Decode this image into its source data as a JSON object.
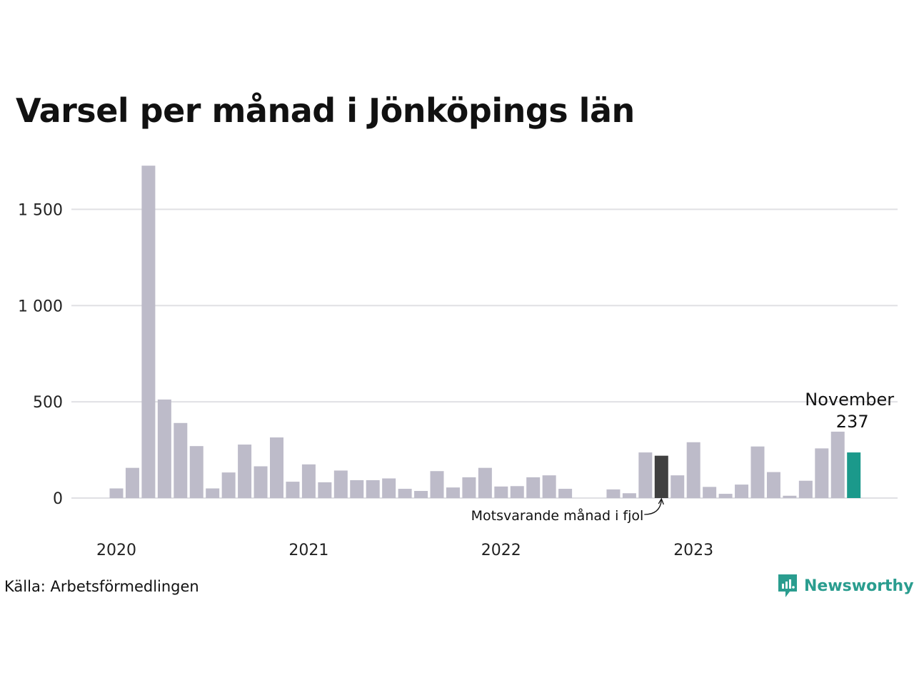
{
  "title": "Varsel per månad i Jönköpings län",
  "source": "Källa: Arbetsförmedlingen",
  "brand": "Newsworthy",
  "chart_data": {
    "type": "bar",
    "title": "Varsel per månad i Jönköpings län",
    "xlabel": "",
    "ylabel": "",
    "ylim": [
      0,
      1750
    ],
    "yticks": [
      0,
      500,
      1000,
      1500
    ],
    "ytick_labels": [
      "0",
      "500",
      "1 000",
      "1 500"
    ],
    "year_labels": [
      {
        "label": "2020",
        "month_index": 0
      },
      {
        "label": "2021",
        "month_index": 12
      },
      {
        "label": "2022",
        "month_index": 24
      },
      {
        "label": "2023",
        "month_index": 36
      }
    ],
    "categories": [
      "2020-01",
      "2020-02",
      "2020-03",
      "2020-04",
      "2020-05",
      "2020-06",
      "2020-07",
      "2020-08",
      "2020-09",
      "2020-10",
      "2020-11",
      "2020-12",
      "2021-01",
      "2021-02",
      "2021-03",
      "2021-04",
      "2021-05",
      "2021-06",
      "2021-07",
      "2021-08",
      "2021-09",
      "2021-10",
      "2021-11",
      "2021-12",
      "2022-01",
      "2022-02",
      "2022-03",
      "2022-04",
      "2022-05",
      "2022-06",
      "2022-07",
      "2022-08",
      "2022-09",
      "2022-10",
      "2022-11",
      "2022-12",
      "2023-01",
      "2023-02",
      "2023-03",
      "2023-04",
      "2023-05",
      "2023-06",
      "2023-07",
      "2023-08",
      "2023-09",
      "2023-10",
      "2023-11"
    ],
    "values": [
      50,
      157,
      1727,
      512,
      390,
      270,
      50,
      133,
      278,
      165,
      315,
      85,
      175,
      82,
      143,
      93,
      93,
      102,
      48,
      37,
      140,
      55,
      108,
      157,
      60,
      62,
      108,
      118,
      48,
      0,
      0,
      45,
      25,
      237,
      220,
      118,
      290,
      58,
      22,
      70,
      268,
      135,
      12,
      90,
      258,
      345,
      237
    ],
    "highlight_previous_year_index": 34,
    "highlight_current_index": 46,
    "annotations": {
      "current_month": "November",
      "current_value": "237",
      "previous_year": "Motsvarande månad i fjol"
    },
    "colors": {
      "default": "#bdbbc9",
      "previous_year": "#404040",
      "current": "#1b998b",
      "grid": "#e0e0e4"
    },
    "grid": true
  }
}
